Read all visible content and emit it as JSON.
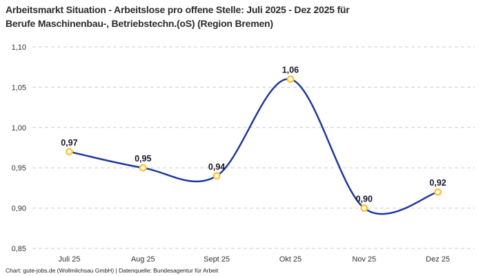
{
  "header": {
    "title_lines": [
      "Arbeitsmarkt Situation - Arbeitslose pro offene Stelle: Juli 2025 - Dez 2025 für",
      "Berufe Maschinenbau-, Betriebstechn.(oS) (Region Bremen)"
    ]
  },
  "footer": {
    "text": "Chart: gute-jobs.de (Wollmilchsau GmbH) | Datenquelle: Bundesagentur für Arbeit"
  },
  "chart_data": {
    "type": "line",
    "line_shape": "spline",
    "title": "Arbeitsmarkt Situation - Arbeitslose pro offene Stelle: Juli 2025 - Dez 2025 für Berufe Maschinenbau-, Betriebstechn.(oS) (Region Bremen)",
    "categories": [
      "Juli 25",
      "Aug 25",
      "Sept 25",
      "Okt 25",
      "Nov 25",
      "Dez 25"
    ],
    "values": [
      0.97,
      0.95,
      0.94,
      1.06,
      0.9,
      0.92
    ],
    "point_labels": [
      "0,97",
      "0,95",
      "0,94",
      "1,06",
      "0,90",
      "0,92"
    ],
    "y_ticks": {
      "values": [
        0.85,
        0.9,
        0.95,
        1.0,
        1.05,
        1.1
      ],
      "labels": [
        "0,85",
        "0,90",
        "0,95",
        "1,00",
        "1,05",
        "1,10"
      ]
    },
    "ylim": [
      0.85,
      1.1
    ],
    "xlabel": "",
    "ylabel": "",
    "grid": "dashed-horizontal",
    "legend": "none",
    "colors": {
      "line": "#1e3799",
      "marker_stroke": "#ffc234",
      "marker_fill": "#ffffff",
      "grid": "#cccccc",
      "axis_text": "#333333",
      "point_label": "#14142b",
      "title": "#2b2b2b"
    }
  }
}
